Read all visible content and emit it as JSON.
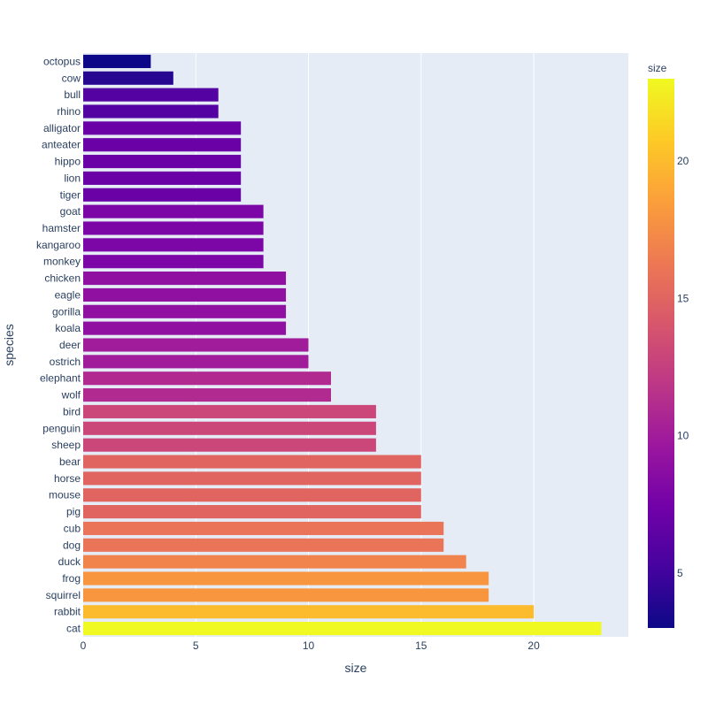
{
  "chart_data": {
    "type": "bar",
    "orientation": "horizontal",
    "title": "",
    "xlabel": "size",
    "ylabel": "species",
    "xlim": [
      0,
      24.2
    ],
    "x_ticks": [
      0,
      5,
      10,
      15,
      20
    ],
    "grid": true,
    "background": "#e5ecf6",
    "gridline_color": "#ffffff",
    "categories": [
      "octopus",
      "cow",
      "bull",
      "rhino",
      "alligator",
      "anteater",
      "hippo",
      "lion",
      "tiger",
      "goat",
      "hamster",
      "kangaroo",
      "monkey",
      "chicken",
      "eagle",
      "gorilla",
      "koala",
      "deer",
      "ostrich",
      "elephant",
      "wolf",
      "bird",
      "penguin",
      "sheep",
      "bear",
      "horse",
      "mouse",
      "pig",
      "cub",
      "dog",
      "duck",
      "frog",
      "squirrel",
      "rabbit",
      "cat"
    ],
    "values": [
      3,
      4,
      6,
      6,
      7,
      7,
      7,
      7,
      7,
      8,
      8,
      8,
      8,
      9,
      9,
      9,
      9,
      10,
      10,
      11,
      11,
      13,
      13,
      13,
      15,
      15,
      15,
      15,
      16,
      16,
      17,
      18,
      18,
      20,
      23
    ],
    "colorbar": {
      "title": "size",
      "range": [
        3,
        23
      ],
      "ticks": [
        5,
        10,
        15,
        20
      ],
      "colorscale": [
        "#0d0887",
        "#46039f",
        "#7201a8",
        "#9c179e",
        "#bd3786",
        "#d8576b",
        "#ed7953",
        "#fb9f3a",
        "#fdca26",
        "#f0f921"
      ]
    }
  }
}
